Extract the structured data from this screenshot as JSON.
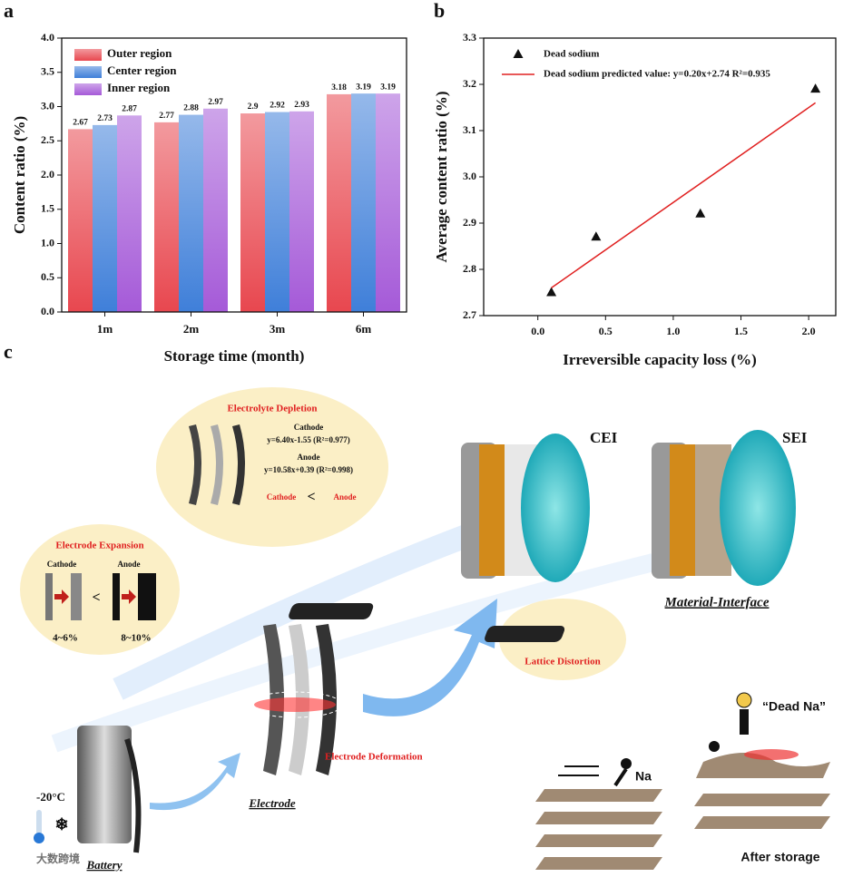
{
  "panel_labels": [
    "a",
    "b",
    "c"
  ],
  "chart_data": [
    {
      "type": "bar",
      "xlabel": "Storage time (month)",
      "ylabel": "Content ratio (%)",
      "categories": [
        "1m",
        "2m",
        "3m",
        "6m"
      ],
      "series": [
        {
          "name": "Outer region",
          "color": "#e8474f",
          "values": [
            2.67,
            2.77,
            2.9,
            3.18
          ]
        },
        {
          "name": "Center region",
          "color": "#3f7fd9",
          "values": [
            2.73,
            2.88,
            2.92,
            3.19
          ]
        },
        {
          "name": "Inner region",
          "color": "#a55ad8",
          "values": [
            2.87,
            2.97,
            2.93,
            3.19
          ]
        }
      ],
      "ylim": [
        0,
        4
      ],
      "yticks": [
        {
          "value": 0,
          "label": "0.0"
        },
        0.5,
        {
          "value": 1,
          "label": "1.0"
        },
        1.5,
        {
          "value": 2,
          "label": "2.0"
        },
        2.5,
        {
          "value": 3,
          "label": "3.0"
        },
        3.5,
        {
          "value": 4,
          "label": "4.0"
        }
      ],
      "legend": "upper left"
    },
    {
      "type": "scatter",
      "xlabel": "Irreversible capacity loss (%)",
      "ylabel": "Average content ratio (%)",
      "series": [
        {
          "name": "Dead sodium",
          "color": "#111111",
          "marker": "triangle",
          "x": [
            0.1,
            0.43,
            1.2,
            2.05
          ],
          "values": [
            2.75,
            2.87,
            2.92,
            3.19
          ]
        },
        {
          "name": "Dead sodium predicted value: y=0.20x+2.74 R²=0.935",
          "color": "#e02020",
          "marker": "line",
          "x": [
            0.1,
            2.05
          ],
          "values": [
            2.76,
            3.16
          ]
        }
      ],
      "xlim": [
        -0.4,
        2.2
      ],
      "xticks": [
        {
          "value": 0,
          "label": "0.0"
        },
        0.5,
        {
          "value": 1,
          "label": "1.0"
        },
        1.5,
        {
          "value": 2,
          "label": "2.0"
        }
      ],
      "ylim": [
        2.7,
        3.3
      ],
      "yticks": [
        2.7,
        2.8,
        2.9,
        {
          "value": 3,
          "label": "3.0"
        },
        3.1,
        3.2,
        3.3
      ],
      "legend": "upper left"
    }
  ],
  "diagram": {
    "electrolyte": {
      "title": "Electrolyte Depletion",
      "cathode": "Cathode",
      "cathode_eq": "y=6.40x-1.55 (R²=0.977)",
      "anode": "Anode",
      "anode_eq": "y=10.58x+0.39 (R²=0.998)",
      "cmp_left": "Cathode",
      "cmp_sign": "<",
      "cmp_right": "Anode"
    },
    "expansion": {
      "title": "Electrode Expansion",
      "cathode": "Cathode",
      "sign": "<",
      "anode": "Anode",
      "cathode_range": "4~6%",
      "anode_range": "8~10%"
    },
    "interface": {
      "cei": "CEI",
      "sei": "SEI",
      "caption": "Material-Interface",
      "lattice": "Lattice Distortion"
    },
    "electrode": {
      "deformation": "Electrode Deformation",
      "caption": "Electrode"
    },
    "battery": {
      "caption": "Battery",
      "temperature": "-20°C"
    },
    "sodium": {
      "na": "Na",
      "dead": "“Dead Na”",
      "caption": "After storage"
    },
    "watermark": "大数跨境"
  }
}
